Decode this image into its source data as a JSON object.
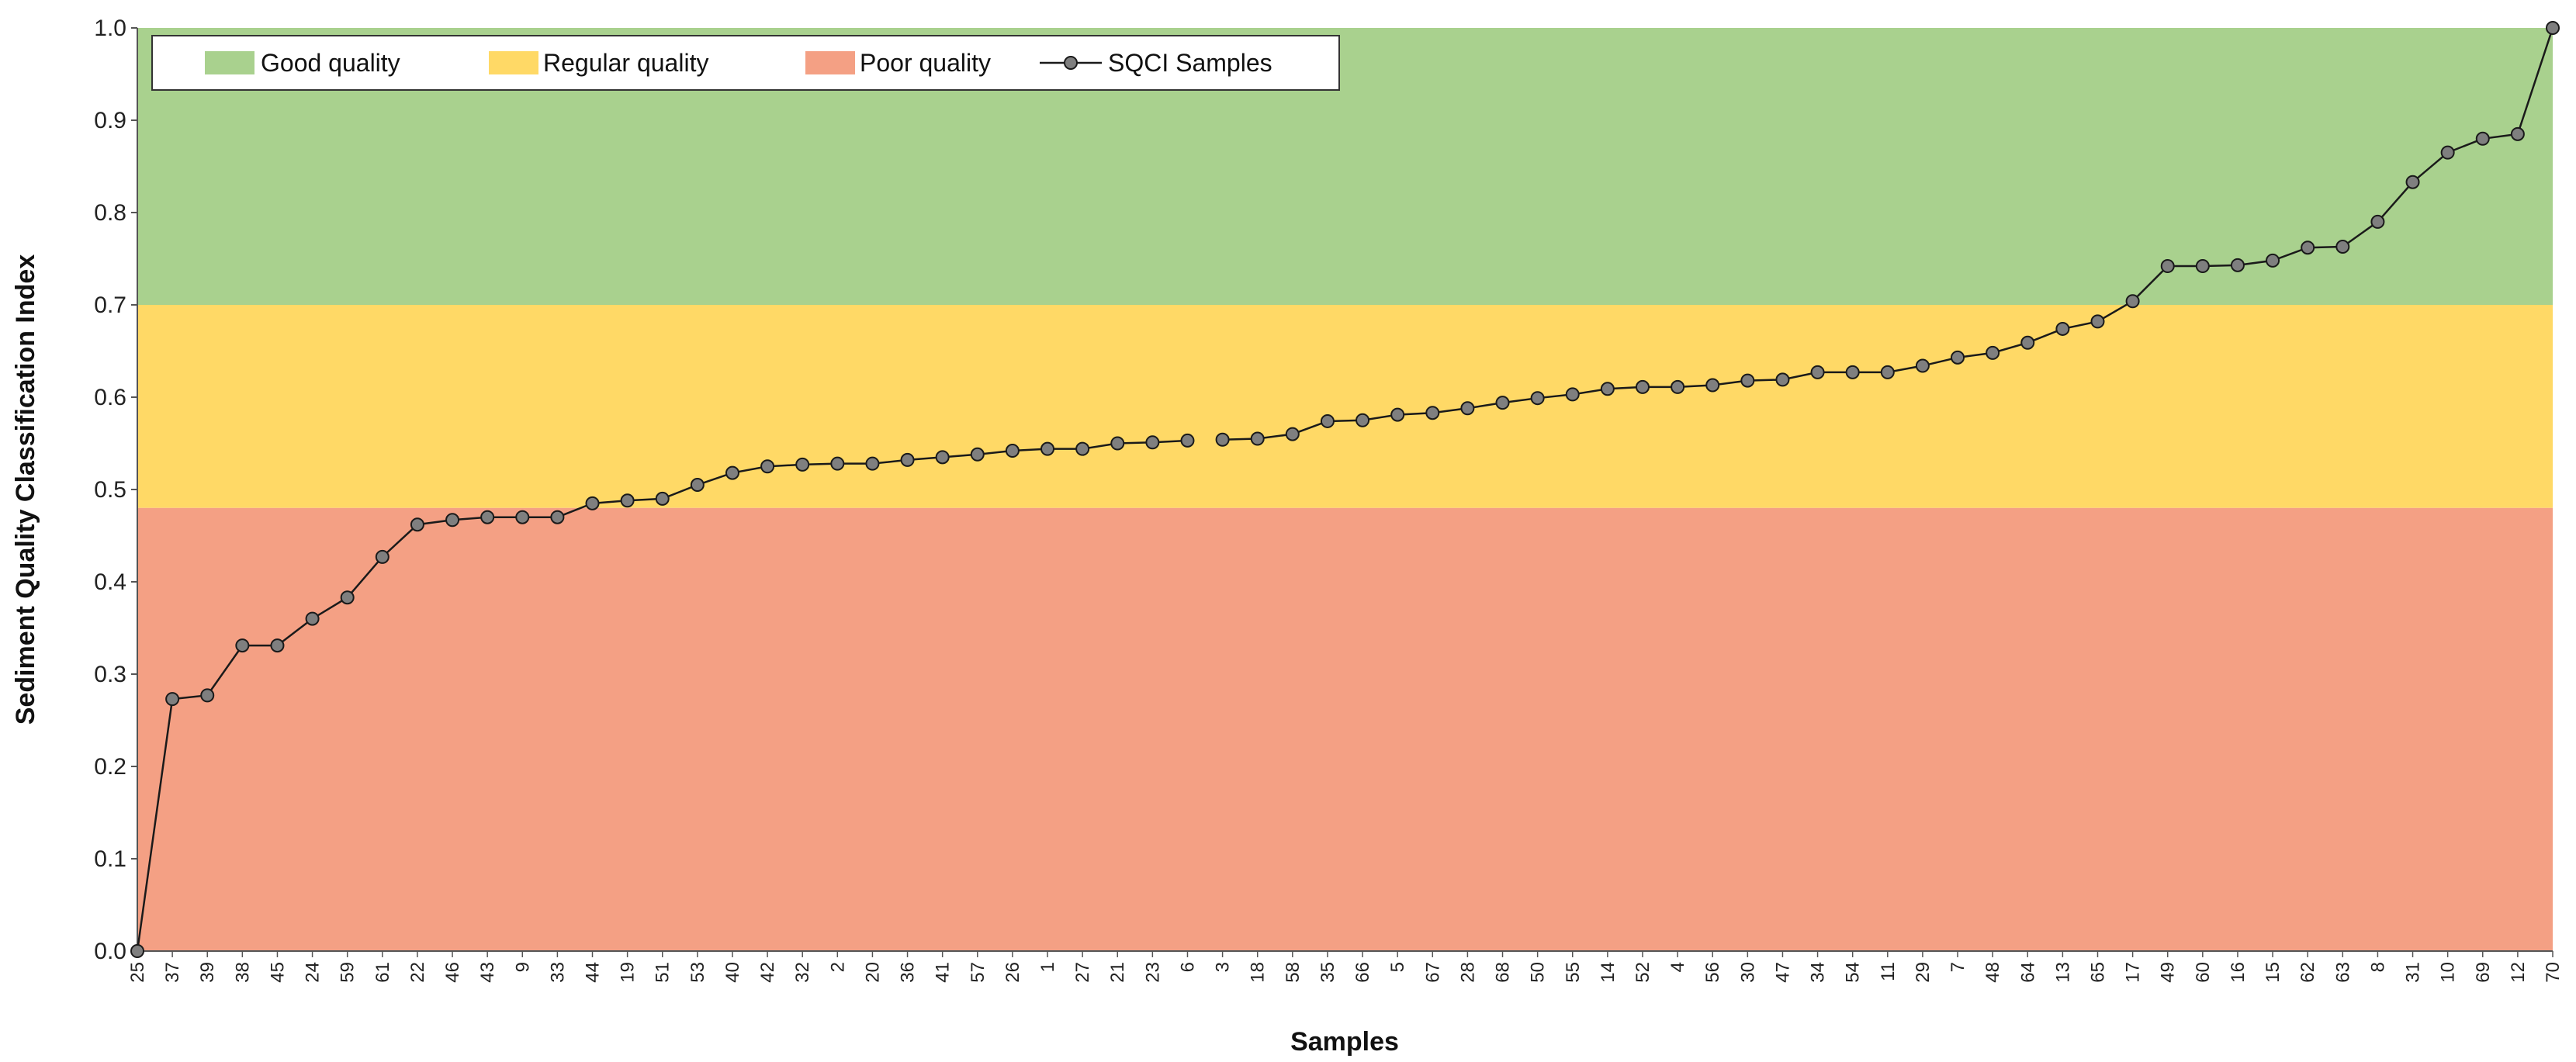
{
  "chart_data": {
    "type": "line",
    "title": "",
    "xlabel": "Samples",
    "ylabel": "Sediment Quality Classification Index",
    "ylim": [
      0,
      1
    ],
    "y_ticks": [
      "0.0",
      "0.1",
      "0.2",
      "0.3",
      "0.4",
      "0.5",
      "0.6",
      "0.7",
      "0.8",
      "0.9",
      "1.0"
    ],
    "grid": false,
    "legend_position": "top-left",
    "bands": [
      {
        "name": "Good quality",
        "from": 0.7,
        "to": 1.0,
        "color": "#a9d18e"
      },
      {
        "name": "Regular quality",
        "from": 0.48,
        "to": 0.7,
        "color": "#ffd966"
      },
      {
        "name": "Poor quality",
        "from": 0.0,
        "to": 0.48,
        "color": "#f4a084"
      }
    ],
    "series": [
      {
        "name": "SQCI Samples",
        "line_color": "#1a1a1a",
        "marker_color": "#7f7f7f",
        "values": [
          0.0,
          0.273,
          0.277,
          0.331,
          0.331,
          0.36,
          0.383,
          0.427,
          0.462,
          0.467,
          0.47,
          0.47,
          0.47,
          0.485,
          0.488,
          0.49,
          0.505,
          0.518,
          0.525,
          0.527,
          0.528,
          0.528,
          0.532,
          0.535,
          0.538,
          0.542,
          0.544,
          0.544,
          0.55,
          0.551,
          0.553,
          0.554,
          0.555,
          0.56,
          0.574,
          0.575,
          0.581,
          0.583,
          0.588,
          0.594,
          0.599,
          0.603,
          0.609,
          0.611,
          0.611,
          0.613,
          0.618,
          0.619,
          0.627,
          0.627,
          0.627,
          0.634,
          0.643,
          0.648,
          0.659,
          0.674,
          0.682,
          0.704,
          0.742,
          0.742,
          0.743,
          0.748,
          0.762,
          0.763,
          0.79,
          0.833,
          0.865,
          0.88,
          0.885,
          1.0
        ]
      }
    ],
    "categories": [
      "25",
      "37",
      "39",
      "38",
      "45",
      "24",
      "59",
      "61",
      "22",
      "46",
      "43",
      "9",
      "33",
      "44",
      "19",
      "51",
      "53",
      "40",
      "42",
      "32",
      "2",
      "20",
      "36",
      "41",
      "57",
      "26",
      "1",
      "27",
      "21",
      "23",
      "6",
      "3",
      "18",
      "58",
      "35",
      "66",
      "5",
      "67",
      "28",
      "68",
      "50",
      "55",
      "14",
      "52",
      "4",
      "56",
      "30",
      "47",
      "34",
      "54",
      "11",
      "29",
      "7",
      "48",
      "64",
      "13",
      "65",
      "17",
      "49",
      "60",
      "16",
      "15",
      "62",
      "63",
      "8",
      "31",
      "10",
      "69",
      "12",
      "70"
    ],
    "gap_after_index": 30
  }
}
